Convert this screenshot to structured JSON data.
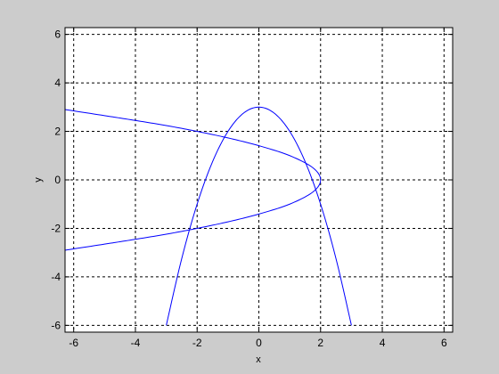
{
  "chart_data": {
    "type": "line",
    "title": "",
    "xlabel": "x",
    "ylabel": "y",
    "xlim": [
      -6.28,
      6.28
    ],
    "ylim": [
      -6.28,
      6.28
    ],
    "xticks": [
      -6,
      -4,
      -2,
      0,
      2,
      4,
      6
    ],
    "yticks": [
      -6,
      -4,
      -2,
      0,
      2,
      4,
      6
    ],
    "xtick_labels": [
      "-6",
      "-4",
      "-2",
      "0",
      "2",
      "4",
      "6"
    ],
    "ytick_labels": [
      "-6",
      "-4",
      "-2",
      "0",
      "2",
      "4",
      "6"
    ],
    "grid": true,
    "grid_style": "dashed",
    "series": [
      {
        "color": "#0000ff",
        "x": [
          -3.0,
          -2.5,
          -2.0,
          -1.5,
          -1.0,
          -0.5,
          0.0,
          0.5,
          1.0,
          1.5,
          2.0,
          2.5,
          3.0
        ],
        "y": [
          -6.0,
          -3.25,
          -1.0,
          0.75,
          2.0,
          2.75,
          3.0,
          2.75,
          2.0,
          0.75,
          -1.0,
          -3.25,
          -6.0
        ]
      },
      {
        "color": "#0000ff",
        "x": [
          -6.28,
          -5.0,
          -4.0,
          -3.0,
          -2.0,
          -1.0,
          0.0,
          1.0,
          1.75,
          2.0,
          1.75,
          1.0,
          0.0,
          -1.0,
          -2.0,
          -3.0,
          -4.0,
          -5.0,
          -6.28
        ],
        "y": [
          -2.9,
          -2.65,
          -2.45,
          -2.24,
          -2.0,
          -1.73,
          -1.41,
          -1.0,
          -0.5,
          0.0,
          0.5,
          1.0,
          1.41,
          1.73,
          2.0,
          2.24,
          2.45,
          2.65,
          2.9
        ]
      }
    ]
  },
  "colors": {
    "figure_background": "#cccccc",
    "axes_background": "#ffffff",
    "line": "#0000ff",
    "grid": "#000000"
  }
}
